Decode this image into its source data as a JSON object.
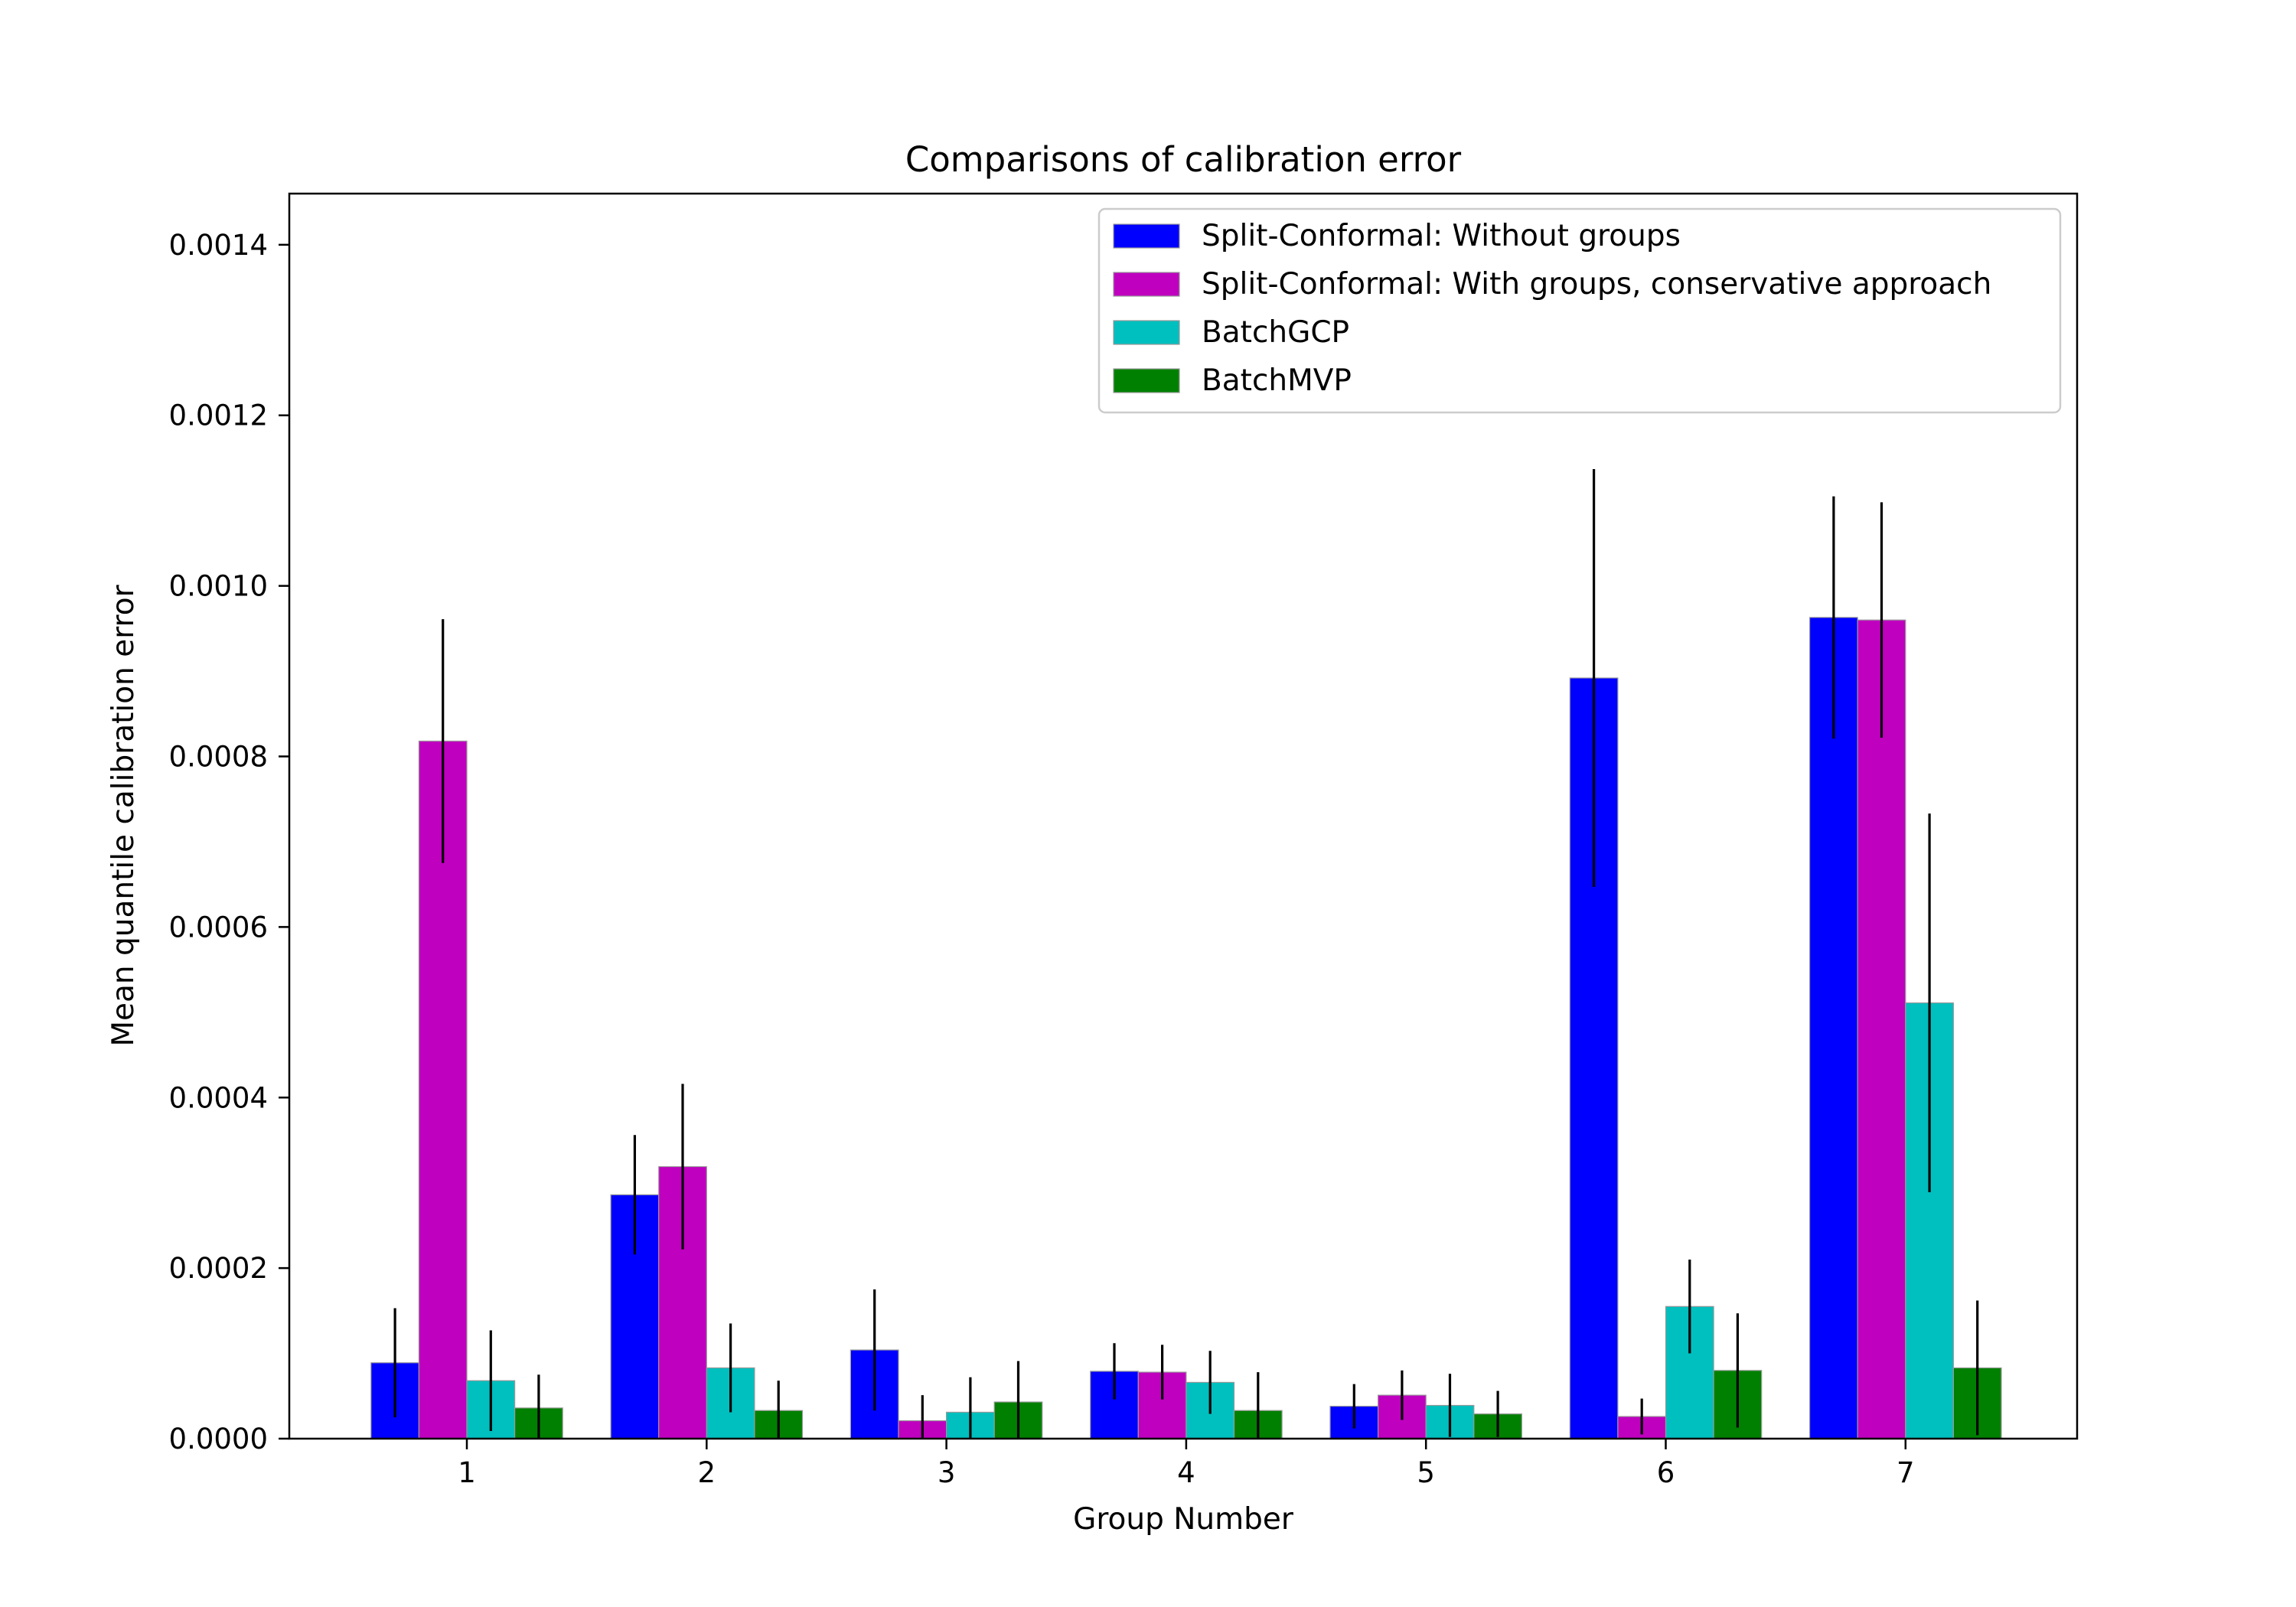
{
  "chart_data": {
    "type": "bar",
    "title": "Comparisons of calibration error",
    "xlabel": "Group Number",
    "ylabel": "Mean quantile calibration error",
    "ylim": [
      0,
      0.00146
    ],
    "categories": [
      "1",
      "2",
      "3",
      "4",
      "5",
      "6",
      "7"
    ],
    "yticks": [
      "0.0000",
      "0.0002",
      "0.0004",
      "0.0006",
      "0.0008",
      "0.0010",
      "0.0012",
      "0.0014"
    ],
    "ytick_values": [
      0,
      0.0002,
      0.0004,
      0.0006,
      0.0008,
      0.001,
      0.0012,
      0.0014
    ],
    "grid": false,
    "legend_position": "top-right",
    "series": [
      {
        "name": "Split-Conformal: Without groups",
        "color": "#0000ff",
        "values": [
          8.9e-05,
          0.000286,
          0.000104,
          7.9e-05,
          3.8e-05,
          0.000892,
          0.000963
        ],
        "errors": [
          6.4e-05,
          7e-05,
          7.1e-05,
          3.3e-05,
          2.6e-05,
          0.000245,
          0.000142
        ]
      },
      {
        "name": "Split-Conformal: With groups, conservative approach",
        "color": "#bf00bf",
        "values": [
          0.000818,
          0.000319,
          2.1e-05,
          7.8e-05,
          5.1e-05,
          2.6e-05,
          0.00096
        ],
        "errors": [
          0.000143,
          9.7e-05,
          3e-05,
          3.2e-05,
          2.9e-05,
          2.1e-05,
          0.000138
        ]
      },
      {
        "name": "BatchGCP",
        "color": "#00bfbf",
        "values": [
          6.8e-05,
          8.3e-05,
          3.1e-05,
          6.6e-05,
          3.9e-05,
          0.000155,
          0.000511
        ],
        "errors": [
          5.9e-05,
          5.2e-05,
          4.1e-05,
          3.7e-05,
          3.7e-05,
          5.5e-05,
          0.000222
        ]
      },
      {
        "name": "BatchMVP",
        "color": "#008000",
        "values": [
          3.6e-05,
          3.3e-05,
          4.3e-05,
          3.3e-05,
          2.9e-05,
          8e-05,
          8.3e-05
        ],
        "errors": [
          3.9e-05,
          3.5e-05,
          4.8e-05,
          4.5e-05,
          2.7e-05,
          6.7e-05,
          7.9e-05
        ]
      }
    ]
  }
}
